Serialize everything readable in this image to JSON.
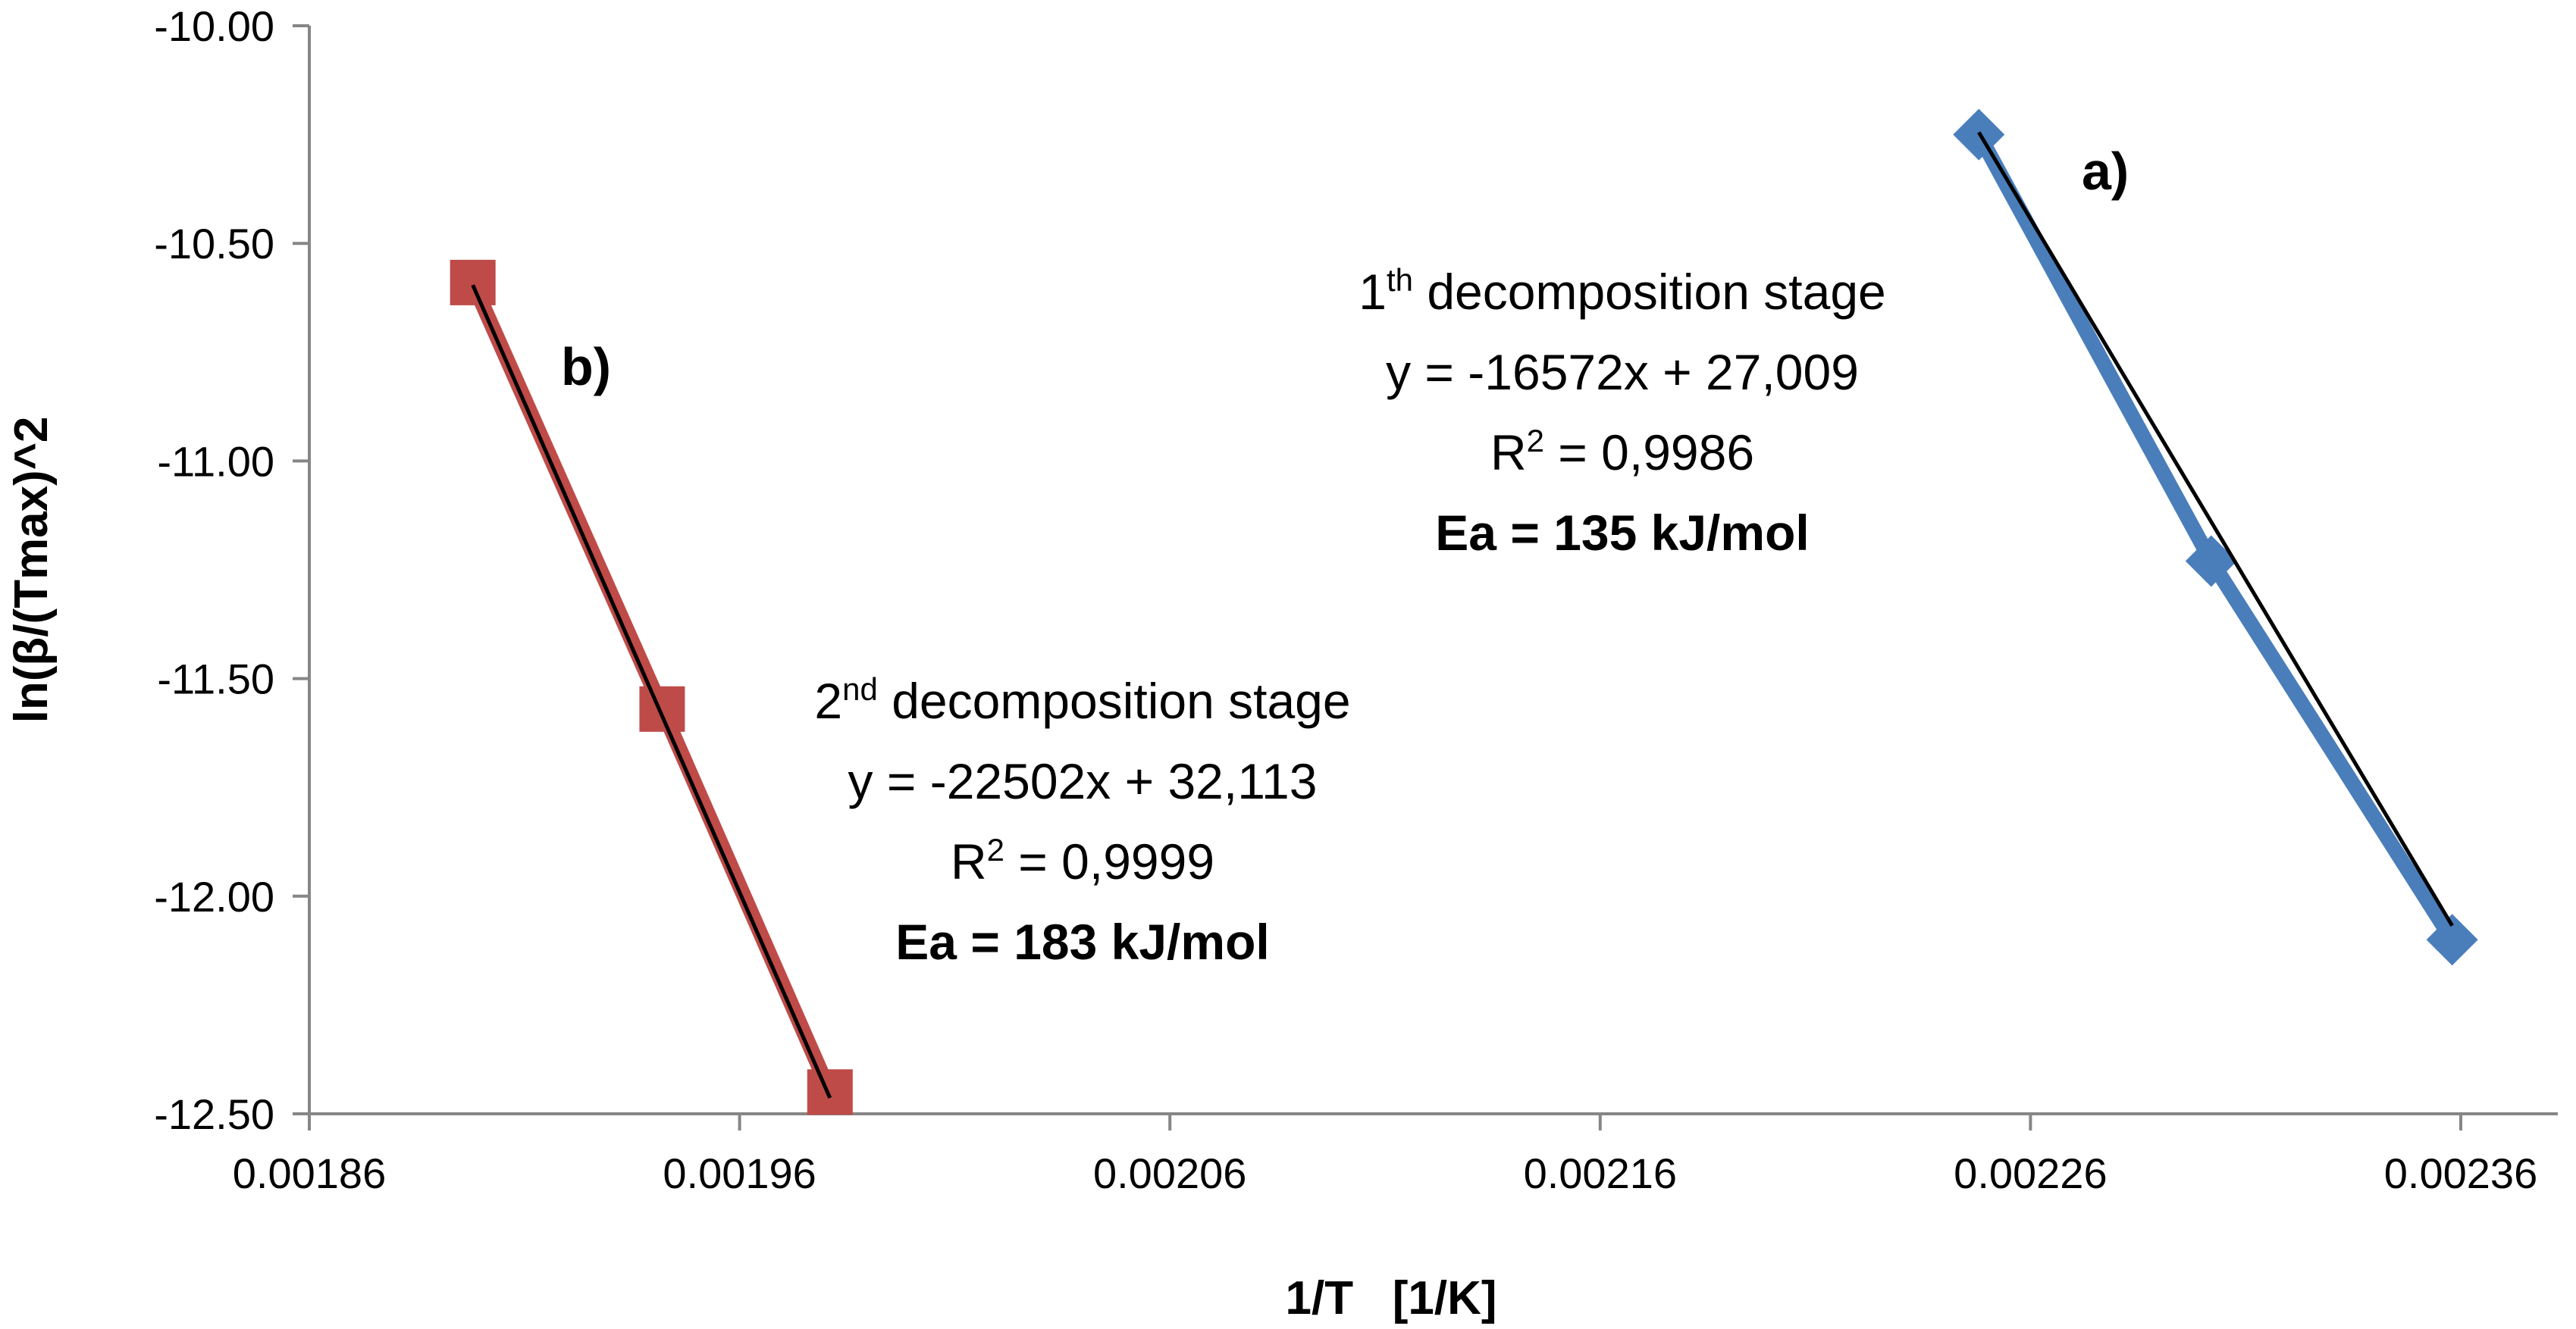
{
  "chart_data": {
    "type": "scatter",
    "title": "",
    "xlabel": "1/T   [1/K]",
    "ylabel": "ln(β/(Tmax)^2",
    "xlim": [
      0.00186,
      0.00238
    ],
    "ylim": [
      -12.5,
      -10.0
    ],
    "x_ticks": [
      0.00186,
      0.00196,
      0.00206,
      0.00216,
      0.00226,
      0.00236
    ],
    "x_tick_labels": [
      "0.00186",
      "0.00196",
      "0.00206",
      "0.00216",
      "0.00226",
      "0.00236"
    ],
    "y_ticks": [
      -10.0,
      -10.5,
      -11.0,
      -11.5,
      -12.0,
      -12.5
    ],
    "y_tick_labels": [
      "-10.00",
      "-10.50",
      "-11.00",
      "-11.50",
      "-12.00",
      "-12.50"
    ],
    "grid": false,
    "series": [
      {
        "name": "a)",
        "label": "a)",
        "marker": "diamond",
        "color": "#4a7ebb",
        "trend_color": "#000000",
        "x": [
          0.002248,
          0.002302,
          0.002358
        ],
        "y": [
          -10.25,
          -11.23,
          -12.1
        ],
        "trendline": {
          "slope": -16572,
          "intercept": 27.009
        },
        "annotation": {
          "stage_prefix": "1",
          "stage_sup": "th",
          "stage_suffix": " decomposition stage",
          "equation": "y = -16572x + 27,009",
          "r2_prefix": "R",
          "r2_sup": "2",
          "r2_suffix": " = 0,9986",
          "ea": "Ea = 135 kJ/mol"
        }
      },
      {
        "name": "b)",
        "label": "b)",
        "marker": "square",
        "color": "#be4b48",
        "trend_color": "#000000",
        "x": [
          0.001898,
          0.001942,
          0.001981
        ],
        "y": [
          -10.59,
          -11.57,
          -12.45
        ],
        "trendline": {
          "slope": -22502,
          "intercept": 32.113
        },
        "annotation": {
          "stage_prefix": "2",
          "stage_sup": "nd",
          "stage_suffix": " decomposition stage",
          "equation": "y = -22502x + 32,113",
          "r2_prefix": "R",
          "r2_sup": "2",
          "r2_suffix": " = 0,9999",
          "ea": "Ea = 183 kJ/mol"
        }
      }
    ]
  }
}
